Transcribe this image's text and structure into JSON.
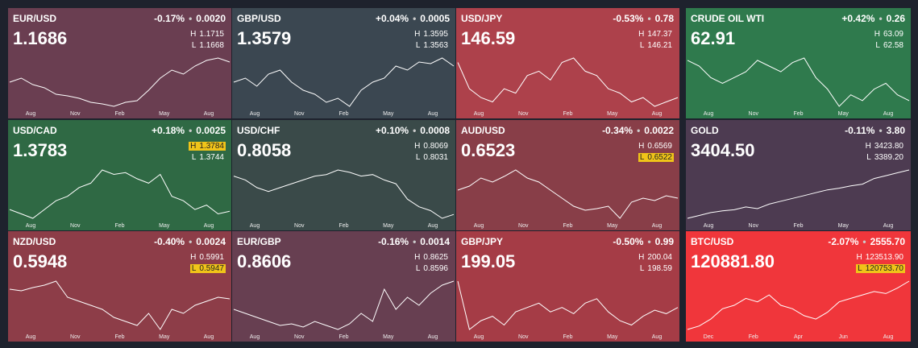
{
  "labels": {
    "high": "H",
    "low": "L"
  },
  "tiles": [
    {
      "symbol": "EUR/USD",
      "change_pct": "-0.17%",
      "change": "0.0020",
      "price": "1.1686",
      "high": "1.1715",
      "low": "1.1668",
      "color": "#6a3e51",
      "x_labels": [
        "Aug",
        "Nov",
        "Feb",
        "May",
        "Aug"
      ],
      "spark": [
        45,
        50,
        42,
        38,
        30,
        28,
        25,
        20,
        18,
        15,
        20,
        22,
        35,
        50,
        60,
        55,
        65,
        72,
        75,
        70
      ]
    },
    {
      "symbol": "GBP/USD",
      "change_pct": "+0.04%",
      "change": "0.0005",
      "price": "1.3579",
      "high": "1.3595",
      "low": "1.3563",
      "color": "#3b4751",
      "x_labels": [
        "Aug",
        "Nov",
        "Feb",
        "May",
        "Aug"
      ],
      "spark": [
        55,
        60,
        50,
        65,
        70,
        55,
        45,
        40,
        30,
        35,
        25,
        45,
        55,
        60,
        75,
        70,
        80,
        78,
        85,
        75
      ]
    },
    {
      "symbol": "USD/JPY",
      "change_pct": "-0.53%",
      "change": "0.78",
      "price": "146.59",
      "high": "147.37",
      "low": "146.21",
      "color": "#ad414b",
      "x_labels": [
        "Aug",
        "Nov",
        "Feb",
        "May",
        "Aug"
      ],
      "spark": [
        70,
        40,
        30,
        25,
        40,
        35,
        55,
        60,
        50,
        70,
        75,
        60,
        55,
        40,
        35,
        25,
        30,
        20,
        25,
        30
      ]
    },
    {
      "symbol": "CRUDE OIL WTI",
      "change_pct": "+0.42%",
      "change": "0.26",
      "price": "62.91",
      "high": "63.09",
      "low": "62.58",
      "color": "#2f7a4d",
      "x_labels": [
        "Aug",
        "Nov",
        "Feb",
        "May",
        "Aug"
      ],
      "spark": [
        60,
        55,
        45,
        40,
        45,
        50,
        60,
        55,
        50,
        58,
        62,
        45,
        35,
        20,
        30,
        25,
        35,
        40,
        30,
        25
      ]
    },
    {
      "symbol": "USD/CAD",
      "change_pct": "+0.18%",
      "change": "0.0025",
      "price": "1.3783",
      "high": "1.3784",
      "low": "1.3744",
      "highlight": "high",
      "color": "#2f6944",
      "x_labels": [
        "Aug",
        "Nov",
        "Feb",
        "May",
        "Aug"
      ],
      "spark": [
        30,
        25,
        20,
        30,
        40,
        45,
        55,
        60,
        75,
        70,
        72,
        65,
        60,
        70,
        45,
        40,
        30,
        35,
        25,
        28
      ]
    },
    {
      "symbol": "USD/CHF",
      "change_pct": "+0.10%",
      "change": "0.0008",
      "price": "0.8058",
      "high": "0.8069",
      "low": "0.8031",
      "color": "#3a4a49",
      "x_labels": [
        "Aug",
        "Nov",
        "Feb",
        "May",
        "Aug"
      ],
      "spark": [
        70,
        65,
        55,
        50,
        55,
        60,
        65,
        70,
        72,
        78,
        75,
        70,
        72,
        65,
        60,
        40,
        30,
        25,
        15,
        20
      ]
    },
    {
      "symbol": "AUD/USD",
      "change_pct": "-0.34%",
      "change": "0.0022",
      "price": "0.6523",
      "high": "0.6569",
      "low": "0.6522",
      "highlight": "low",
      "color": "#883e48",
      "x_labels": [
        "Aug",
        "Nov",
        "Feb",
        "May",
        "Aug"
      ],
      "spark": [
        55,
        60,
        70,
        65,
        72,
        80,
        70,
        65,
        55,
        45,
        35,
        30,
        32,
        35,
        20,
        40,
        45,
        42,
        48,
        45
      ]
    },
    {
      "symbol": "GOLD",
      "change_pct": "-0.11%",
      "change": "3.80",
      "price": "3404.50",
      "high": "3423.80",
      "low": "3389.20",
      "color": "#4d3b51",
      "x_labels": [
        "Aug",
        "Nov",
        "Feb",
        "May",
        "Aug"
      ],
      "spark": [
        5,
        10,
        15,
        18,
        20,
        25,
        22,
        30,
        35,
        40,
        45,
        50,
        55,
        58,
        62,
        65,
        75,
        80,
        85,
        90
      ]
    },
    {
      "symbol": "NZD/USD",
      "change_pct": "-0.40%",
      "change": "0.0024",
      "price": "0.5948",
      "high": "0.5991",
      "low": "0.5947",
      "highlight": "low",
      "color": "#8d3d48",
      "x_labels": [
        "Aug",
        "Nov",
        "Feb",
        "May",
        "Aug"
      ],
      "spark": [
        70,
        68,
        72,
        75,
        80,
        60,
        55,
        50,
        45,
        35,
        30,
        25,
        40,
        20,
        45,
        40,
        50,
        55,
        60,
        58
      ]
    },
    {
      "symbol": "EUR/GBP",
      "change_pct": "-0.16%",
      "change": "0.0014",
      "price": "0.8606",
      "high": "0.8625",
      "low": "0.8596",
      "color": "#673f51",
      "x_labels": [
        "Aug",
        "Nov",
        "Feb",
        "May",
        "Aug"
      ],
      "spark": [
        40,
        35,
        30,
        25,
        20,
        22,
        18,
        25,
        20,
        15,
        22,
        35,
        25,
        65,
        40,
        55,
        45,
        60,
        70,
        75
      ]
    },
    {
      "symbol": "GBP/JPY",
      "change_pct": "-0.50%",
      "change": "0.99",
      "price": "199.05",
      "high": "200.04",
      "low": "198.59",
      "color": "#a53c46",
      "x_labels": [
        "Aug",
        "Nov",
        "Feb",
        "May",
        "Aug"
      ],
      "spark": [
        75,
        20,
        30,
        35,
        25,
        40,
        45,
        50,
        40,
        45,
        38,
        50,
        55,
        40,
        30,
        25,
        35,
        42,
        38,
        45
      ]
    },
    {
      "symbol": "BTC/USD",
      "change_pct": "-2.07%",
      "change": "2555.70",
      "price": "120881.80",
      "high": "123513.90",
      "low": "120753.70",
      "highlight": "low",
      "color": "#f0363b",
      "x_labels": [
        "Dec",
        "Feb",
        "Apr",
        "Jun",
        "Aug"
      ],
      "spark": [
        10,
        15,
        25,
        40,
        45,
        55,
        50,
        60,
        45,
        40,
        30,
        25,
        35,
        50,
        55,
        60,
        65,
        62,
        70,
        80
      ]
    }
  ]
}
